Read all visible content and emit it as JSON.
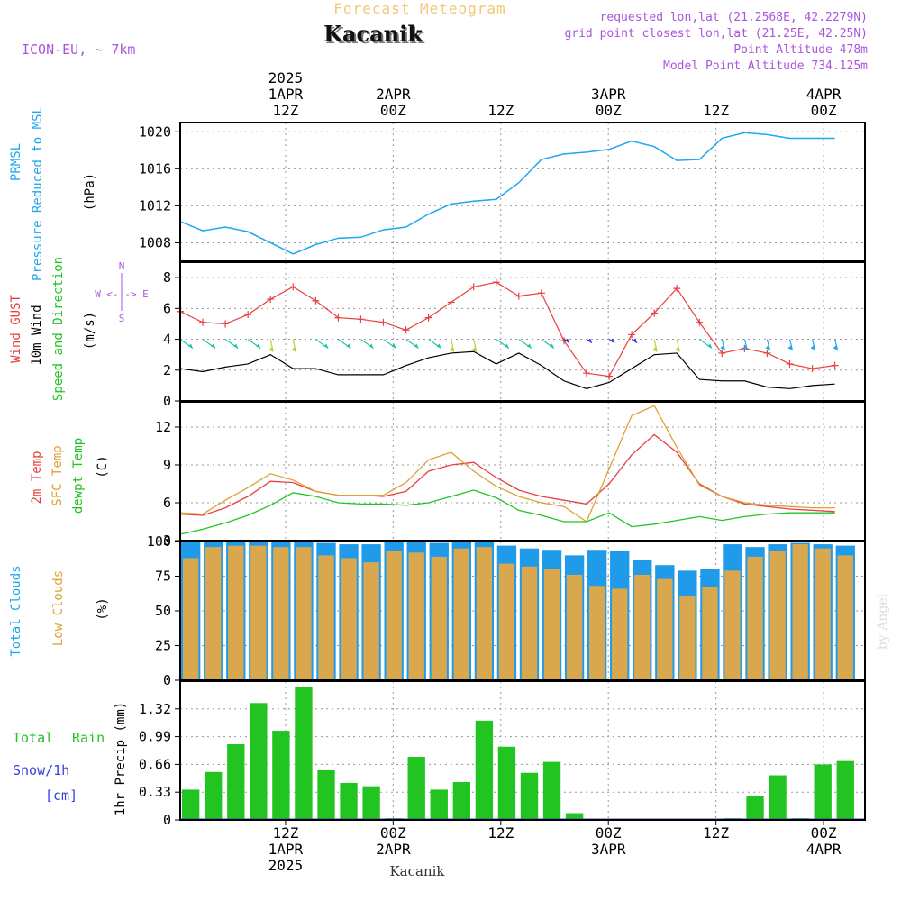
{
  "header": {
    "title": "Forecast Meteogram",
    "location": "Kacanik",
    "model": "ICON-EU, ~ 7km",
    "requested": "requested lon,lat (21.2568E, 42.2279N)",
    "grid_point": "grid point closest lon,lat (21.25E, 42.25N)",
    "point_altitude": "Point Altitude 478m",
    "model_altitude": "Model Point Altitude 734.125m",
    "footer": "Kacanik",
    "watermark": "by Angel"
  },
  "colors": {
    "pressure": "#1ea7ee",
    "gust": "#e84040",
    "wind": "#000000",
    "green": "#22c422",
    "orange": "#e0a030",
    "purple": "#aa55dd",
    "blue_label": "#3344dd",
    "cloud_total": "#1f9bea",
    "cloud_low": "#d9a84e",
    "rain": "#22c422"
  },
  "top_axis": [
    {
      "lines": [
        "2025",
        "1APR",
        "12Z"
      ]
    },
    {
      "lines": [
        "2APR",
        "00Z"
      ]
    },
    {
      "lines": [
        "12Z"
      ]
    },
    {
      "lines": [
        "3APR",
        "00Z"
      ]
    },
    {
      "lines": [
        "12Z"
      ]
    },
    {
      "lines": [
        "4APR",
        "00Z"
      ]
    }
  ],
  "bottom_axis": [
    {
      "lines": [
        "12Z",
        "1APR",
        "2025"
      ]
    },
    {
      "lines": [
        "00Z",
        "2APR"
      ]
    },
    {
      "lines": [
        "12Z"
      ]
    },
    {
      "lines": [
        "00Z",
        "3APR"
      ]
    },
    {
      "lines": [
        "12Z"
      ]
    },
    {
      "lines": [
        "00Z",
        "4APR"
      ]
    }
  ],
  "panel_labels": {
    "pressure": {
      "l1": "PRMSL",
      "l2": "Pressure Reduced to MSL",
      "unit": "(hPa)"
    },
    "wind": {
      "gust": "Wind GUST",
      "wind10": "10m Wind",
      "dir": "Speed and Direction",
      "unit": "(m/s)",
      "compass_h": "W <-|-> E",
      "compass_n": "N",
      "compass_s": "S"
    },
    "temp": {
      "t2m": "2m Temp",
      "sfc": "SFC Temp",
      "dew": "dewpt Temp",
      "unit": "(C)"
    },
    "clouds": {
      "total": "Total Clouds",
      "low": "Low Clouds",
      "unit": "(%)"
    },
    "precip": {
      "total": "Total",
      "rain": "Rain",
      "snow": "Snow/1h",
      "cm": "[cm]",
      "unit": "1hr Precip (mm)"
    }
  },
  "chart_data": [
    {
      "type": "line",
      "title": "PRMSL Pressure Reduced to MSL",
      "ylabel": "(hPa)",
      "ylim": [
        1006,
        1021
      ],
      "yticks": [
        "1008",
        "1012",
        "1016",
        "1020"
      ],
      "x_hours": [
        0,
        3,
        6,
        9,
        12,
        15,
        18,
        21,
        24,
        27,
        30,
        33,
        36,
        39,
        42,
        45,
        48,
        51,
        54,
        57,
        60,
        63,
        66,
        69,
        72,
        75,
        78,
        81,
        84,
        87
      ],
      "series": [
        {
          "name": "Pressure",
          "values": [
            1010.3,
            1009.3,
            1009.7,
            1009.2,
            1008.0,
            1006.8,
            1007.8,
            1008.5,
            1008.6,
            1009.4,
            1009.7,
            1011.1,
            1012.2,
            1012.5,
            1012.7,
            1014.5,
            1017.0,
            1017.6,
            1017.8,
            1018.1,
            1019.0,
            1018.4,
            1016.9,
            1017.0,
            1019.3,
            1019.9,
            1019.7,
            1019.3,
            1019.3,
            1019.3
          ]
        }
      ]
    },
    {
      "type": "line",
      "title": "Wind GUST / 10m Wind Speed and Direction",
      "ylabel": "(m/s)",
      "ylim": [
        0,
        9
      ],
      "yticks": [
        "0",
        "2",
        "4",
        "6",
        "8"
      ],
      "x_hours": [
        0,
        3,
        6,
        9,
        12,
        15,
        18,
        21,
        24,
        27,
        30,
        33,
        36,
        39,
        42,
        45,
        48,
        51,
        54,
        57,
        60,
        63,
        66,
        69,
        72,
        75,
        78,
        81,
        84,
        87
      ],
      "series": [
        {
          "name": "Wind GUST",
          "values": [
            5.8,
            5.1,
            5.0,
            5.6,
            6.6,
            7.4,
            6.5,
            5.4,
            5.3,
            5.1,
            4.6,
            5.4,
            6.4,
            7.4,
            7.7,
            6.8,
            7.0,
            3.9,
            1.8,
            1.6,
            4.3,
            5.7,
            7.3,
            5.1,
            3.1,
            3.4,
            3.1,
            2.4,
            2.1,
            2.3
          ]
        },
        {
          "name": "10m Wind",
          "values": [
            2.1,
            1.9,
            2.2,
            2.4,
            3.0,
            2.1,
            2.1,
            1.7,
            1.7,
            1.7,
            2.3,
            2.8,
            3.1,
            3.2,
            2.4,
            3.1,
            2.3,
            1.3,
            0.8,
            1.2,
            2.1,
            3.0,
            3.1,
            1.4,
            1.3,
            1.3,
            0.9,
            0.8,
            1.0,
            1.1
          ]
        }
      ],
      "direction_row": "4 m/s"
    },
    {
      "type": "line",
      "title": "2m Temp / SFC Temp / dewpt Temp",
      "ylabel": "(C)",
      "ylim": [
        3,
        14
      ],
      "yticks": [
        "3",
        "6",
        "9",
        "12"
      ],
      "x_hours": [
        0,
        3,
        6,
        9,
        12,
        15,
        18,
        21,
        24,
        27,
        30,
        33,
        36,
        39,
        42,
        45,
        48,
        51,
        54,
        57,
        60,
        63,
        66,
        69,
        72,
        75,
        78,
        81,
        84,
        87
      ],
      "series": [
        {
          "name": "2m Temp",
          "values": [
            5.1,
            5.0,
            5.6,
            6.5,
            7.7,
            7.6,
            6.9,
            6.6,
            6.6,
            6.5,
            6.9,
            8.5,
            9.0,
            9.2,
            8.0,
            7.0,
            6.5,
            6.2,
            5.9,
            7.5,
            9.8,
            11.4,
            10.0,
            7.5,
            6.5,
            5.9,
            5.7,
            5.5,
            5.4,
            5.3
          ]
        },
        {
          "name": "SFC Temp",
          "values": [
            5.2,
            5.1,
            6.2,
            7.2,
            8.3,
            7.8,
            6.9,
            6.6,
            6.6,
            6.6,
            7.6,
            9.4,
            10.0,
            8.5,
            7.3,
            6.5,
            6.0,
            5.7,
            4.5,
            8.7,
            12.9,
            13.7,
            10.4,
            7.4,
            6.5,
            6.0,
            5.8,
            5.7,
            5.6,
            5.6
          ]
        },
        {
          "name": "dewpt Temp",
          "values": [
            3.5,
            3.9,
            4.4,
            5.0,
            5.8,
            6.8,
            6.5,
            6.0,
            5.9,
            5.9,
            5.8,
            6.0,
            6.5,
            7.0,
            6.4,
            5.4,
            5.0,
            4.5,
            4.5,
            5.2,
            4.1,
            4.3,
            4.6,
            4.9,
            4.6,
            4.9,
            5.1,
            5.2,
            5.2,
            5.2
          ]
        }
      ]
    },
    {
      "type": "bar",
      "title": "Total Clouds / Low Clouds",
      "ylabel": "(%)",
      "ylim": [
        0,
        100
      ],
      "yticks": [
        "0",
        "25",
        "50",
        "75",
        "100"
      ],
      "x_hours": [
        0,
        3,
        6,
        9,
        12,
        15,
        18,
        21,
        24,
        27,
        30,
        33,
        36,
        39,
        42,
        45,
        48,
        51,
        54,
        57,
        60,
        63,
        66,
        69,
        72,
        75,
        78,
        81,
        84,
        87
      ],
      "series": [
        {
          "name": "Total Clouds",
          "values": [
            100,
            100,
            100,
            100,
            100,
            100,
            99,
            98,
            98,
            100,
            100,
            99,
            100,
            100,
            97,
            95,
            94,
            90,
            94,
            93,
            87,
            83,
            79,
            80,
            98,
            96,
            98,
            99,
            98,
            97
          ]
        },
        {
          "name": "Low Clouds",
          "values": [
            88,
            96,
            97,
            97,
            96,
            96,
            90,
            88,
            85,
            93,
            92,
            89,
            95,
            96,
            84,
            82,
            80,
            76,
            68,
            66,
            76,
            73,
            61,
            67,
            79,
            89,
            93,
            98,
            95,
            90
          ]
        }
      ]
    },
    {
      "type": "bar",
      "title": "Total Rain / Snow 1hr Precip",
      "ylabel": "1hr Precip (mm)",
      "ylim": [
        0,
        1.65
      ],
      "yticks": [
        "0",
        "0.33",
        "0.66",
        "0.99",
        "1.32"
      ],
      "x_hours": [
        0,
        3,
        6,
        9,
        12,
        15,
        18,
        21,
        24,
        27,
        30,
        33,
        36,
        39,
        42,
        45,
        48,
        51,
        54,
        57,
        60,
        63,
        66,
        69,
        72,
        75,
        78,
        81,
        84,
        87
      ],
      "series": [
        {
          "name": "Total Rain",
          "values": [
            0.36,
            0.57,
            0.9,
            1.39,
            1.06,
            1.58,
            0.59,
            0.44,
            0.4,
            0.02,
            0.75,
            0.36,
            0.45,
            1.18,
            0.87,
            0.56,
            0.69,
            0.08,
            0.0,
            0.0,
            0.0,
            0.0,
            0.0,
            0.0,
            0.02,
            0.28,
            0.53,
            0.02,
            0.66,
            0.7
          ]
        },
        {
          "name": "Snow/1h",
          "values": [
            0,
            0,
            0,
            0,
            0,
            0,
            0,
            0,
            0,
            0,
            0,
            0,
            0,
            0,
            0,
            0,
            0,
            0,
            0,
            0,
            0,
            0,
            0,
            0,
            0,
            0,
            0,
            0,
            0,
            0
          ]
        }
      ]
    }
  ]
}
